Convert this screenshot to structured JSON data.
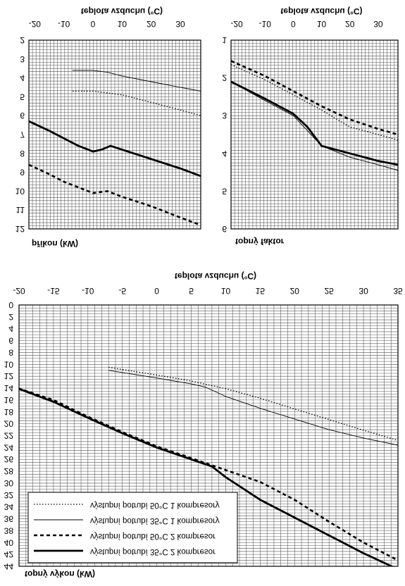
{
  "chart_data": [
    {
      "id": "prikon",
      "type": "line",
      "title": "teplota vzduchu (°C)",
      "xlabel": "teplota vzduchu (°C)",
      "ylabel": "příkon (kW)",
      "xlim": [
        -22,
        37
      ],
      "ylim": [
        2,
        12
      ],
      "x_ticks": [
        -20,
        -10,
        0,
        10,
        20,
        30
      ],
      "y_ticks": [
        2,
        3,
        4,
        5,
        6,
        7,
        8,
        9,
        10,
        11,
        12
      ],
      "y_inverted": true,
      "grid": true,
      "series": [
        {
          "ref": "50-1",
          "style": "dotted",
          "x": [
            -7,
            0,
            5,
            10,
            20,
            30,
            37
          ],
          "y": [
            4.7,
            4.7,
            4.8,
            4.9,
            5.3,
            5.7,
            6.0
          ]
        },
        {
          "ref": "35-1",
          "style": "thin",
          "x": [
            -7,
            0,
            5,
            10,
            20,
            30,
            37
          ],
          "y": [
            3.6,
            3.6,
            3.7,
            3.9,
            4.2,
            4.5,
            4.7
          ]
        },
        {
          "ref": "50-2",
          "style": "dashed",
          "x": [
            -22,
            -15,
            -10,
            -5,
            0,
            5,
            10,
            20,
            30,
            37
          ],
          "y": [
            8.6,
            9.1,
            9.5,
            9.8,
            10.1,
            10.0,
            10.3,
            10.8,
            11.4,
            11.8
          ]
        },
        {
          "ref": "35-2",
          "style": "thick",
          "x": [
            -22,
            -15,
            -10,
            -5,
            0,
            3,
            6,
            10,
            20,
            30,
            37
          ],
          "y": [
            6.3,
            6.8,
            7.2,
            7.6,
            7.9,
            7.8,
            7.6,
            7.8,
            8.3,
            8.8,
            9.2
          ]
        }
      ]
    },
    {
      "id": "faktor",
      "type": "line",
      "title": "teplota vzduchu (°C)",
      "xlabel": "teplota vzduchu (°C)",
      "ylabel": "topný faktor",
      "xlim": [
        -22,
        37
      ],
      "ylim": [
        1,
        6
      ],
      "x_ticks": [
        -20,
        -10,
        0,
        10,
        20,
        30
      ],
      "y_ticks": [
        1,
        2,
        3,
        4,
        5,
        6
      ],
      "y_inverted": true,
      "grid": true,
      "series": [
        {
          "ref": "50-1",
          "style": "dotted",
          "x": [
            -22,
            -10,
            0,
            10,
            20,
            30,
            37
          ],
          "y": [
            1.65,
            2.05,
            2.45,
            2.85,
            3.3,
            3.5,
            3.65
          ]
        },
        {
          "ref": "35-1",
          "style": "thin",
          "x": [
            -22,
            -10,
            0,
            5,
            10,
            20,
            30,
            37
          ],
          "y": [
            2.1,
            2.6,
            3.0,
            3.4,
            3.8,
            4.1,
            4.3,
            4.45
          ]
        },
        {
          "ref": "50-2",
          "style": "dashed",
          "x": [
            -22,
            -10,
            0,
            10,
            20,
            30,
            37
          ],
          "y": [
            1.55,
            1.95,
            2.35,
            2.75,
            3.1,
            3.35,
            3.5
          ]
        },
        {
          "ref": "35-2",
          "style": "thick",
          "x": [
            -22,
            -10,
            0,
            5,
            10,
            20,
            30,
            37
          ],
          "y": [
            2.1,
            2.55,
            2.95,
            3.3,
            3.8,
            4.0,
            4.2,
            4.3
          ]
        }
      ]
    },
    {
      "id": "vykon",
      "type": "line",
      "title": "teplota vzduchu (°C)",
      "xlabel": "teplota vzduchu (°C)",
      "ylabel": "topný výkon (kW)",
      "xlim": [
        -20,
        35
      ],
      "ylim": [
        0,
        44
      ],
      "x_ticks": [
        -20,
        -15,
        -10,
        -5,
        0,
        5,
        10,
        15,
        20,
        25,
        30,
        35
      ],
      "y_ticks": [
        0,
        2,
        4,
        6,
        8,
        10,
        12,
        14,
        16,
        18,
        20,
        22,
        24,
        26,
        28,
        30,
        32,
        34,
        36,
        38,
        40,
        42,
        44
      ],
      "y_inverted": true,
      "grid": true,
      "legend": {
        "placement": "bottom-left",
        "items": [
          {
            "ref": "50-1",
            "style": "dotted",
            "label": "výstupní potrubí 50°C 1 kompresory"
          },
          {
            "ref": "35-1",
            "style": "thin",
            "label": "výstupní potrubí 35°C 1 kompresory"
          },
          {
            "ref": "50-2",
            "style": "dashed",
            "label": "výstupní potrubí 50°C 2 kompresor"
          },
          {
            "ref": "35-2",
            "style": "thick",
            "label": "výstupní potrubí 35°C 2 kompresor"
          }
        ]
      },
      "series": [
        {
          "ref": "50-1",
          "style": "dotted",
          "x": [
            -7,
            0,
            5,
            10,
            15,
            20,
            25,
            30,
            35
          ],
          "y": [
            10.5,
            11.8,
            12.8,
            14.1,
            15.7,
            17.5,
            19.3,
            21.1,
            22.8
          ]
        },
        {
          "ref": "35-1",
          "style": "thin",
          "x": [
            -7,
            0,
            5,
            7,
            10,
            15,
            20,
            25,
            30,
            35
          ],
          "y": [
            11.0,
            12.3,
            13.3,
            13.8,
            15.4,
            17.4,
            19.2,
            21.0,
            22.4,
            23.6
          ]
        },
        {
          "ref": "50-2",
          "style": "dashed",
          "x": [
            -21,
            -15,
            -10,
            -5,
            0,
            5,
            10,
            15,
            20,
            25,
            30,
            35
          ],
          "y": [
            13.7,
            16.0,
            18.8,
            21.4,
            23.8,
            25.8,
            27.8,
            29.8,
            32.8,
            36.5,
            40.0,
            43.0
          ]
        },
        {
          "ref": "35-2",
          "style": "thick",
          "x": [
            -21,
            -15,
            -10,
            -5,
            0,
            5,
            8,
            10,
            15,
            20,
            25,
            30,
            35
          ],
          "y": [
            13.7,
            16.3,
            19.0,
            21.6,
            24.0,
            26.0,
            27.2,
            29.0,
            32.8,
            35.8,
            38.8,
            41.8,
            44.5
          ]
        }
      ]
    }
  ]
}
